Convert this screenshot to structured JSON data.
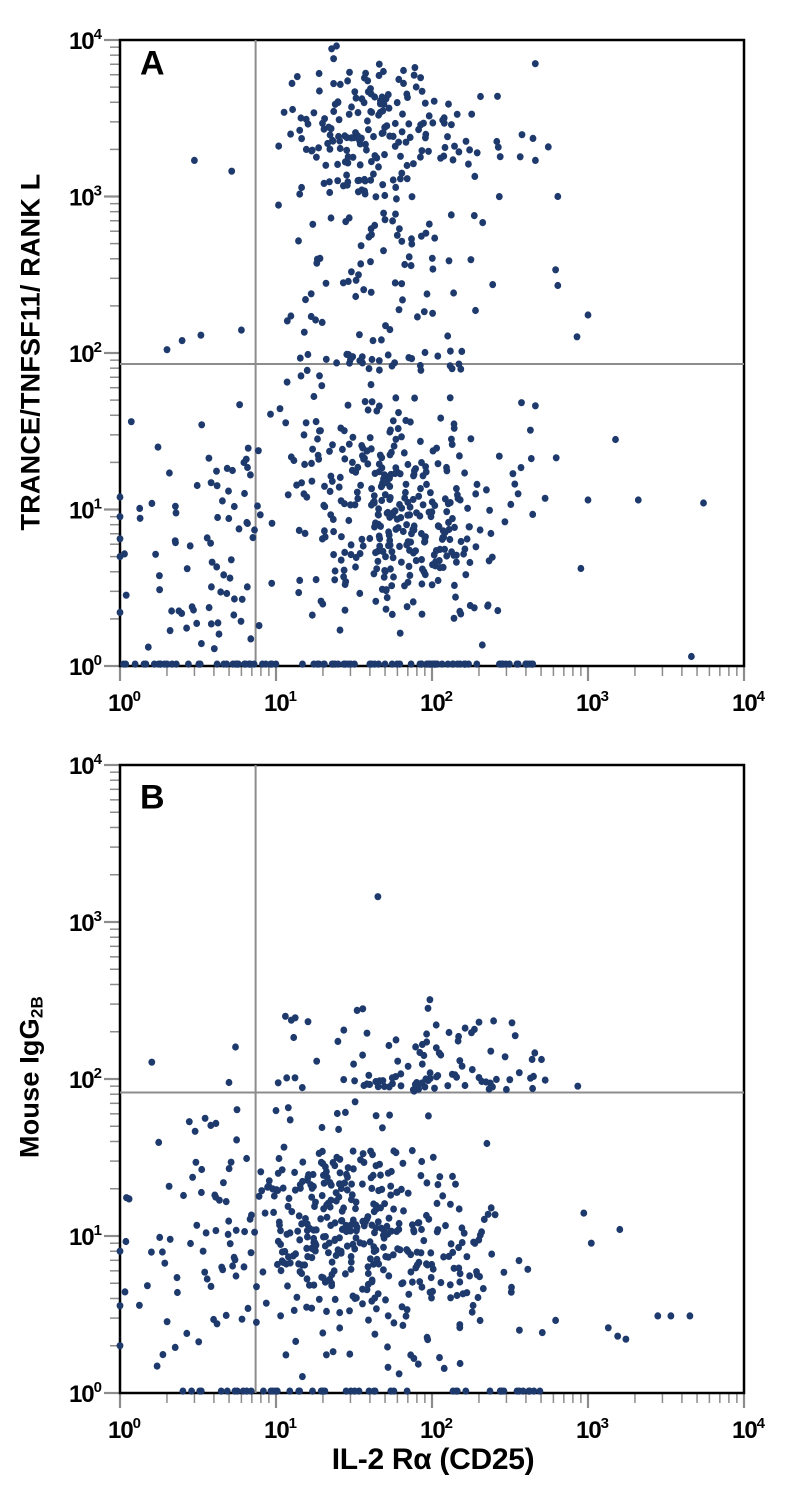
{
  "figure": {
    "x_axis_title": "IL-2 Rα (CD25)",
    "background": "#ffffff",
    "dot_color": "#1e3a6d",
    "axis_color": "#000000",
    "tick_color": "#8c8c8c",
    "gate_color": "#8c8c8c",
    "tick_exponents": [
      0,
      1,
      2,
      3,
      4
    ]
  },
  "chart_data": [
    {
      "type": "scatter",
      "panel_label": "A",
      "title": "",
      "xlabel": "IL-2 Rα (CD25)",
      "ylabel": "TRANCE/TNFSF11/ RANK L",
      "xscale": "log",
      "yscale": "log",
      "xlim": [
        1,
        10000
      ],
      "ylim": [
        1,
        10000
      ],
      "grid": false,
      "legend": null,
      "quadrant_gates": {
        "x": 7.4,
        "y": 85
      },
      "clusters": [
        {
          "name": "upper-dense-cluster",
          "n": 170,
          "center": [
            1.55,
            3.42
          ],
          "sigma": [
            0.28,
            0.27
          ],
          "clip": [
            1.0,
            2.35,
            2.55,
            3.97
          ]
        },
        {
          "name": "upper-right-tail",
          "n": 45,
          "center": [
            2.15,
            3.25
          ],
          "sigma": [
            0.35,
            0.35
          ],
          "clip": [
            1.3,
            2.85,
            2.3,
            3.95
          ]
        },
        {
          "name": "upper-mid-tail",
          "n": 60,
          "center": [
            1.7,
            2.5
          ],
          "sigma": [
            0.35,
            0.28
          ],
          "clip": [
            0.95,
            2.6,
            1.98,
            3.1
          ]
        },
        {
          "name": "main-low-cloud",
          "n": 230,
          "center": [
            1.75,
            0.95
          ],
          "sigma": [
            0.42,
            0.4
          ],
          "clip": [
            0.15,
            2.9,
            0.1,
            1.9
          ]
        },
        {
          "name": "dense-low-core",
          "n": 80,
          "center": [
            1.92,
            0.78
          ],
          "sigma": [
            0.2,
            0.22
          ],
          "clip": [
            1.4,
            2.4,
            0.3,
            1.3
          ]
        },
        {
          "name": "mid-sparse-layer",
          "n": 60,
          "center": [
            1.6,
            1.45
          ],
          "sigma": [
            0.5,
            0.3
          ],
          "clip": [
            0.2,
            2.9,
            0.9,
            1.9
          ]
        },
        {
          "name": "left-of-gate-cloud",
          "n": 70,
          "center": [
            0.55,
            0.72
          ],
          "sigma": [
            0.3,
            0.42
          ],
          "clip": [
            0.02,
            0.9,
            0.06,
            1.6
          ]
        },
        {
          "name": "gate-hugging-row",
          "n": 30,
          "center": [
            1.75,
            1.96
          ],
          "sigma": [
            0.45,
            0.05
          ],
          "clip": [
            0.95,
            2.75,
            1.88,
            2.02
          ]
        },
        {
          "name": "baseline-band",
          "n": 100,
          "band_x": [
            0.02,
            2.65
          ],
          "band_y": 0.012
        }
      ],
      "outlier_points": [
        [
          3,
          1700
        ],
        [
          5.2,
          1450
        ],
        [
          6,
          140
        ],
        [
          2.5,
          120
        ],
        [
          3.3,
          130
        ],
        [
          2,
          105
        ],
        [
          460,
          1700
        ],
        [
          640,
          1000
        ],
        [
          620,
          340
        ],
        [
          640,
          270
        ],
        [
          1000,
          175
        ],
        [
          850,
          127
        ],
        [
          460,
          46
        ],
        [
          1000,
          11.5
        ],
        [
          2100,
          11.5
        ],
        [
          4600,
          1.15
        ],
        [
          1500,
          28
        ],
        [
          900,
          4.2
        ],
        [
          5500,
          11
        ],
        [
          1,
          9
        ],
        [
          1,
          6.5
        ],
        [
          1,
          5
        ],
        [
          1,
          12
        ],
        [
          1,
          2.2
        ]
      ]
    },
    {
      "type": "scatter",
      "panel_label": "B",
      "title": "",
      "xlabel": "IL-2 Rα (CD25)",
      "ylabel": "Mouse IgG2B",
      "ylabel_main": "Mouse IgG",
      "ylabel_sub": "2B",
      "xscale": "log",
      "yscale": "log",
      "xlim": [
        1,
        10000
      ],
      "ylim": [
        1,
        10000
      ],
      "grid": false,
      "legend": null,
      "quadrant_gates": {
        "x": 7.4,
        "y": 82
      },
      "clusters": [
        {
          "name": "main-low-cloud",
          "n": 240,
          "center": [
            1.45,
            1.05
          ],
          "sigma": [
            0.38,
            0.4
          ],
          "clip": [
            0.15,
            2.9,
            0.1,
            1.88
          ]
        },
        {
          "name": "dense-low-core",
          "n": 100,
          "center": [
            1.35,
            1.15
          ],
          "sigma": [
            0.2,
            0.25
          ],
          "clip": [
            0.98,
            1.9,
            0.6,
            1.7
          ]
        },
        {
          "name": "right-low-spread",
          "n": 80,
          "center": [
            2.0,
            0.7
          ],
          "sigma": [
            0.3,
            0.35
          ],
          "clip": [
            1.5,
            2.9,
            0.1,
            1.6
          ]
        },
        {
          "name": "left-of-gate-cloud",
          "n": 60,
          "center": [
            0.55,
            0.9
          ],
          "sigma": [
            0.3,
            0.5
          ],
          "clip": [
            0.02,
            0.9,
            0.03,
            1.95
          ]
        },
        {
          "name": "gate-hugging-row",
          "n": 55,
          "center": [
            1.9,
            1.98
          ],
          "sigma": [
            0.42,
            0.04
          ],
          "clip": [
            0.98,
            2.85,
            1.9,
            2.04
          ]
        },
        {
          "name": "above-gate-scatter",
          "n": 45,
          "center": [
            1.95,
            2.2
          ],
          "sigma": [
            0.45,
            0.13
          ],
          "clip": [
            1.0,
            2.9,
            2.05,
            2.5
          ]
        },
        {
          "name": "baseline-band",
          "n": 50,
          "band_x": [
            0.3,
            2.7
          ],
          "band_y": 0.012
        }
      ],
      "outlier_points": [
        [
          45,
          1450
        ],
        [
          36,
          280
        ],
        [
          97,
          320
        ],
        [
          200,
          230
        ],
        [
          2800,
          3.1
        ],
        [
          3400,
          3.1
        ],
        [
          4500,
          3.1
        ],
        [
          1350,
          2.6
        ],
        [
          1550,
          2.3
        ],
        [
          1750,
          2.2
        ],
        [
          1600,
          11
        ],
        [
          1050,
          9
        ],
        [
          620,
          2.9
        ],
        [
          860,
          90
        ],
        [
          940,
          14
        ],
        [
          1.6,
          128
        ],
        [
          5.5,
          160
        ],
        [
          5,
          95
        ],
        [
          1,
          2
        ],
        [
          1,
          3.6
        ],
        [
          1,
          8
        ]
      ]
    }
  ]
}
